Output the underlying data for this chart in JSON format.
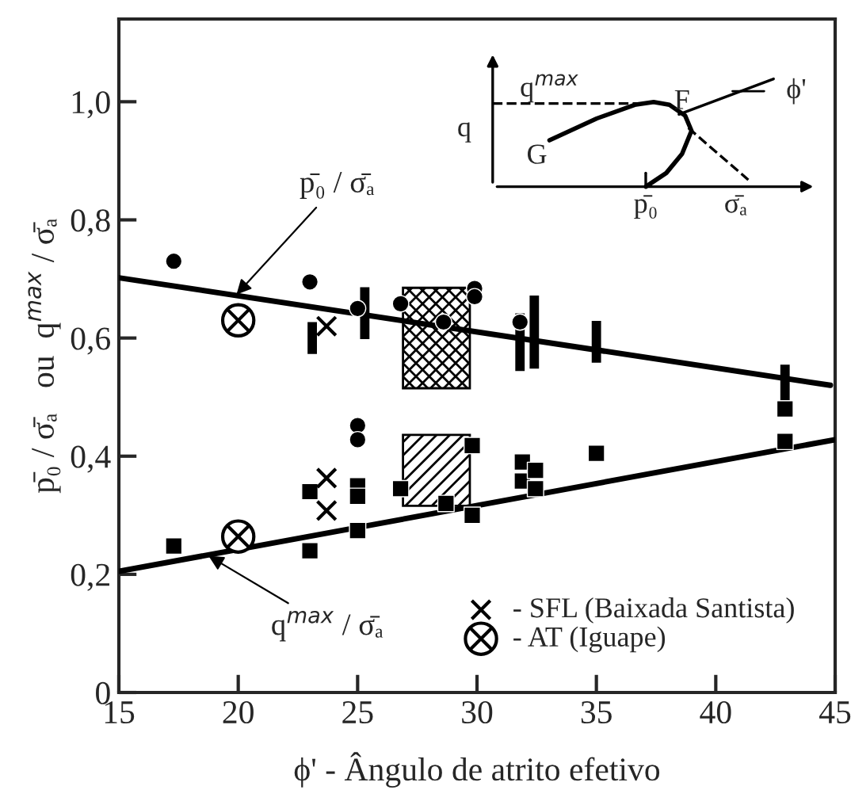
{
  "chart_data": {
    "type": "scatter",
    "xlabel": "ϕ' - Ângulo de atrito efetivo",
    "ylabel": "p̄₀ / σ̄ₐ   ou  q$^{max}$ / σ̄ₐ",
    "xlim": [
      15,
      45
    ],
    "xticks": [
      15,
      20,
      25,
      30,
      35,
      40,
      45
    ],
    "ylim": [
      0,
      1.14
    ],
    "yticks": [
      0,
      {
        "value": 0.2,
        "label": "0,2"
      },
      {
        "value": 0.4,
        "label": "0,4"
      },
      {
        "value": 0.6,
        "label": "0,6"
      },
      {
        "value": 0.8,
        "label": "0,8"
      },
      {
        "value": 1.0,
        "label": "1,0"
      }
    ],
    "grid": false,
    "legend": "bottom right",
    "series": [
      {
        "type": "bar",
        "color": "#000000",
        "x": [
          28.3
        ],
        "base": [
          0.515
        ],
        "values": [
          0.17
        ]
      },
      {
        "type": "bar",
        "color": "#000000",
        "x": [
          28.3
        ],
        "base": [
          0.316
        ],
        "values": [
          0.12
        ]
      },
      {
        "type": "line",
        "color": "#000000",
        "x": [
          15,
          44.8
        ],
        "values": [
          0.702,
          0.52
        ]
      },
      {
        "type": "line",
        "color": "#000000",
        "x": [
          15,
          45
        ],
        "values": [
          0.205,
          0.428
        ]
      },
      {
        "type": "bar",
        "color": "#000000",
        "x": [
          23.1,
          25.3,
          31.8,
          32.4,
          35.0,
          42.9
        ],
        "base": [
          0.575,
          0.6,
          0.546,
          0.55,
          0.56,
          0.48
        ],
        "values": [
          0.05,
          0.084,
          0.094,
          0.12,
          0.067,
          0.073
        ]
      },
      {
        "marker": "circle",
        "color": "#000000",
        "x": [
          17.3,
          23.0,
          25.0,
          26.8,
          29.9,
          29.9,
          28.6,
          31.8,
          25.0,
          25.0
        ],
        "values": [
          0.73,
          0.695,
          0.65,
          0.658,
          0.684,
          0.67,
          0.627,
          0.627,
          0.452,
          0.428
        ]
      },
      {
        "marker": "square",
        "color": "#000000",
        "x": [
          17.3,
          23.0,
          23.0,
          25.0,
          25.0,
          25.0,
          26.8,
          28.7,
          29.8,
          29.8,
          31.9,
          31.9,
          32.45,
          32.45,
          35.0,
          42.9,
          42.9
        ],
        "values": [
          0.248,
          0.34,
          0.24,
          0.35,
          0.332,
          0.274,
          0.345,
          0.32,
          0.418,
          0.3,
          0.39,
          0.358,
          0.376,
          0.345,
          0.405,
          0.425,
          0.48
        ]
      },
      {
        "marker": "cross",
        "color": "#000000",
        "name": "- SFL (Baixada Santista)",
        "x": [
          23.7,
          23.7,
          23.7
        ],
        "values": [
          0.62,
          0.363,
          0.308
        ]
      },
      {
        "color": "#000000",
        "name": "- AT (Iguape)",
        "x": [
          20,
          20
        ],
        "values": [
          0.63,
          0.264
        ]
      }
    ],
    "annotations": [
      {
        "text": "p̄₀ / σ̄ₐ",
        "x": 19.8,
        "y": 0.668
      },
      {
        "text": "q$^{max}$ / σ̄ₐ",
        "x": 18.6,
        "y": 0.235
      },
      "q$^{max}$",
      "F",
      "q",
      "G",
      "ϕ'",
      "p̄₀",
      "σ̄ₐ"
    ]
  }
}
